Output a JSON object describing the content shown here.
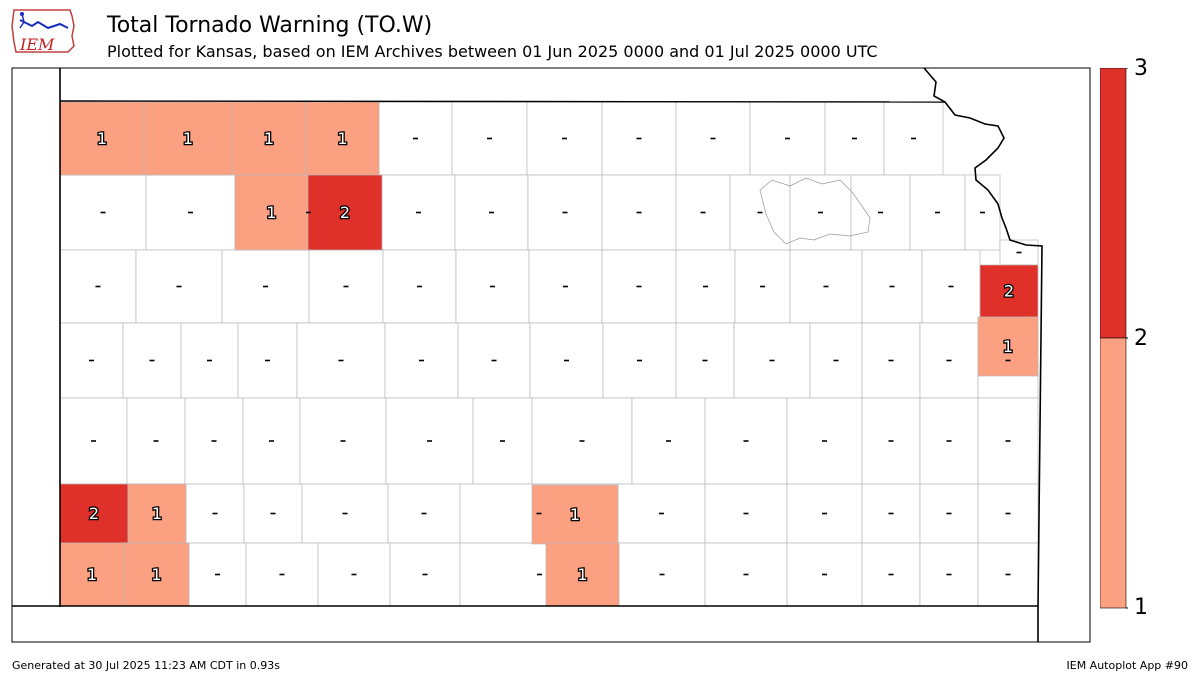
{
  "header": {
    "title": "Total Tornado Warning (TO.W)",
    "subtitle": "Plotted for Kansas, based on IEM Archives  between 01 Jun 2025 0000 and 01 Jul 2025 0000 UTC",
    "logo_text": "IEM"
  },
  "colorbar": {
    "labels": [
      "3",
      "2",
      "1"
    ],
    "colors": {
      "level1": "#fca082",
      "level2": "#e0302a"
    }
  },
  "map": {
    "no_data_label": "-",
    "counts": [
      {
        "id": "Cheyenne",
        "value": 1
      },
      {
        "id": "Rawlins",
        "value": 1
      },
      {
        "id": "Decatur",
        "value": 1
      },
      {
        "id": "Norton",
        "value": 1
      },
      {
        "id": "Sheridan",
        "value": 1
      },
      {
        "id": "Graham",
        "value": 2
      },
      {
        "id": "Doniphan",
        "value": 2
      },
      {
        "id": "Leavenworth",
        "value": 1
      },
      {
        "id": "Stevens",
        "value": 2
      },
      {
        "id": "Seward",
        "value": 1
      },
      {
        "id": "Morton",
        "value": 1
      },
      {
        "id": "Kingman",
        "value": 1
      },
      {
        "id": "Harper",
        "value": 1
      },
      {
        "id": "Meade",
        "value": 1
      }
    ]
  },
  "footer": {
    "left": "Generated at 30 Jul 2025 11:23 AM CDT in 0.93s",
    "right": "IEM Autoplot App #90"
  }
}
